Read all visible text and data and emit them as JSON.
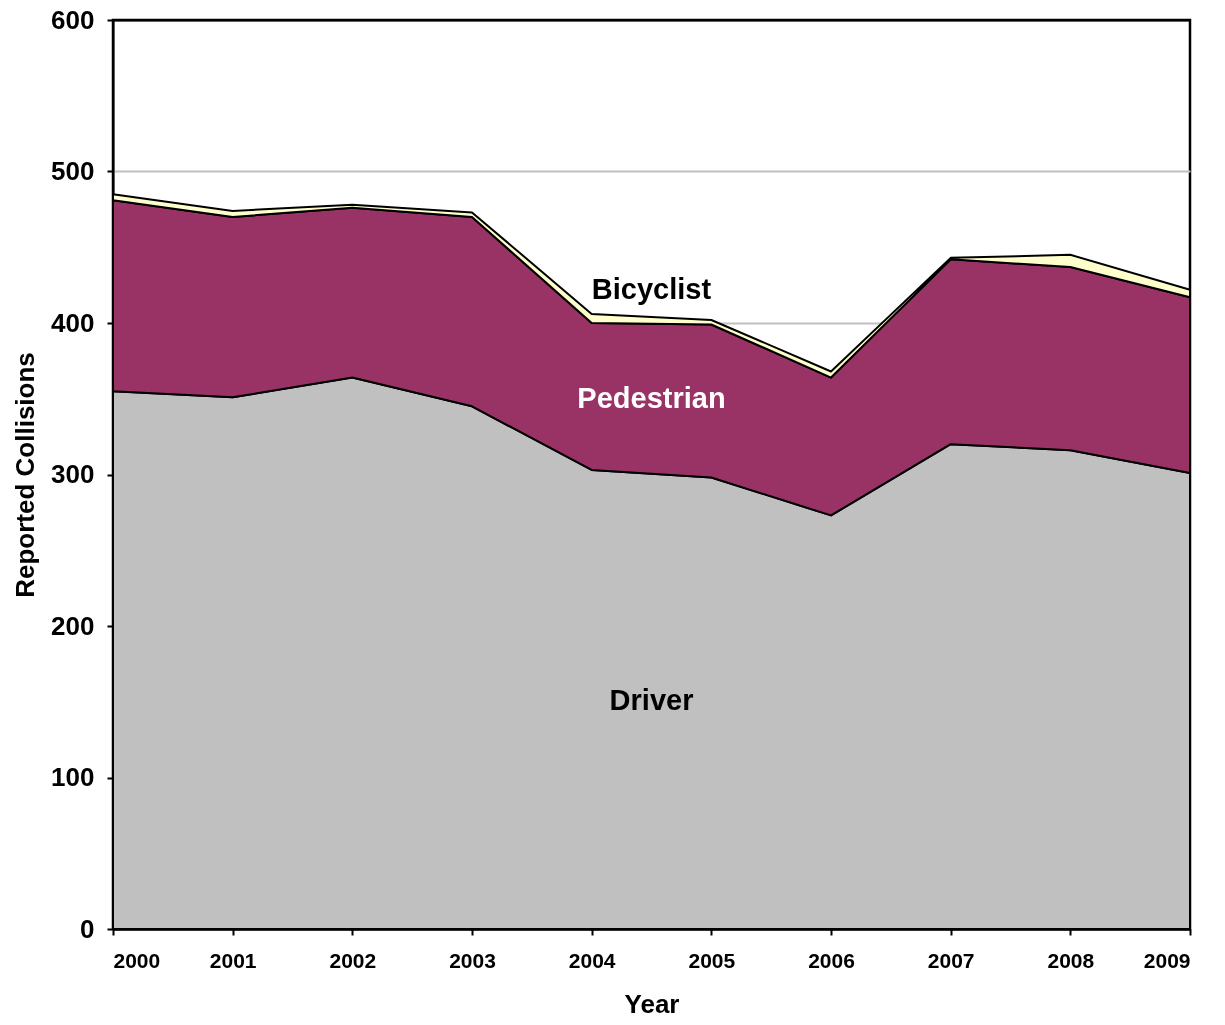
{
  "chart_data": {
    "type": "area",
    "stacked": true,
    "xlabel": "Year",
    "ylabel": "Reported Collisions",
    "categories": [
      "2000",
      "2001",
      "2002",
      "2003",
      "2004",
      "2005",
      "2006",
      "2007",
      "2008",
      "2009"
    ],
    "ylim": [
      0,
      600
    ],
    "yticks": [
      0,
      100,
      200,
      300,
      400,
      500,
      600
    ],
    "grid": "y",
    "series": [
      {
        "name": "Driver",
        "color": "#c0c0c0",
        "values": [
          355,
          351,
          364,
          345,
          303,
          298,
          273,
          320,
          316,
          301
        ]
      },
      {
        "name": "Pedestrian",
        "color": "#993366",
        "values": [
          126,
          119,
          112,
          125,
          97,
          101,
          91,
          122,
          121,
          116
        ]
      },
      {
        "name": "Bicyclist",
        "color": "#ffffcc",
        "values": [
          4,
          4,
          2,
          3,
          6,
          3,
          4,
          1,
          8,
          5
        ]
      }
    ]
  }
}
